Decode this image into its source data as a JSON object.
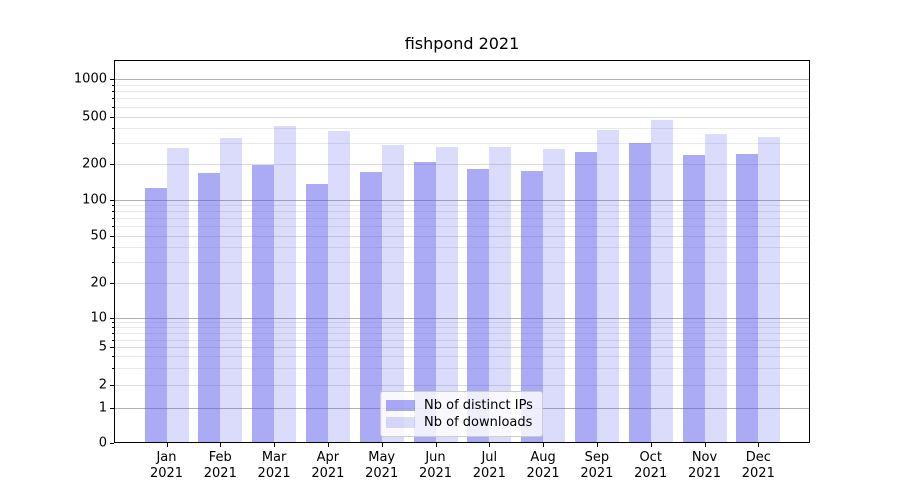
{
  "title": "fishpond 2021",
  "chart_data": {
    "type": "bar",
    "title": "fishpond 2021",
    "yscale": "symlog",
    "grid": "horizontal major+minor",
    "ylim": [
      0,
      1400
    ],
    "yticks": [
      0,
      1,
      2,
      5,
      10,
      20,
      50,
      100,
      200,
      500,
      1000
    ],
    "x_tick_months": [
      "Jan",
      "Feb",
      "Mar",
      "Apr",
      "May",
      "Jun",
      "Jul",
      "Aug",
      "Sep",
      "Oct",
      "Nov",
      "Dec"
    ],
    "x_tick_year": "2021",
    "categories": [
      "Jan 2021",
      "Feb 2021",
      "Mar 2021",
      "Apr 2021",
      "May 2021",
      "Jun 2021",
      "Jul 2021",
      "Aug 2021",
      "Sep 2021",
      "Oct 2021",
      "Nov 2021",
      "Dec 2021"
    ],
    "series": [
      {
        "name": "Nb of distinct IPs",
        "color": "rgba(85,85,235,0.5)",
        "values": [
          124,
          167,
          195,
          135,
          171,
          205,
          179,
          174,
          252,
          297,
          236,
          240
        ]
      },
      {
        "name": "Nb of downloads",
        "color": "rgba(85,85,235,0.21)",
        "values": [
          270,
          330,
          415,
          378,
          286,
          278,
          275,
          267,
          385,
          466,
          354,
          334
        ]
      }
    ],
    "legend": {
      "position": "lower-center",
      "entries": [
        "Nb of distinct IPs",
        "Nb of downloads"
      ]
    }
  }
}
